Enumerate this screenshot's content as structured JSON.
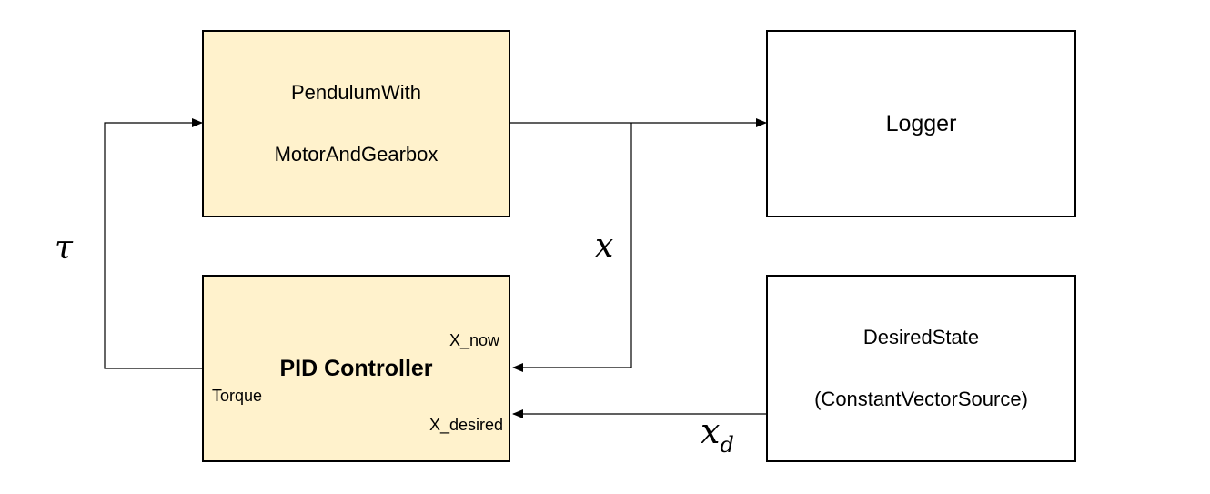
{
  "blocks": {
    "pendulum": {
      "line1": "PendulumWith",
      "line2": "MotorAndGearbox"
    },
    "logger": {
      "label": "Logger"
    },
    "pid": {
      "label": "PID Controller",
      "ports": {
        "x_now": "X_now",
        "x_desired": "X_desired",
        "torque": "Torque"
      }
    },
    "desired_state": {
      "line1": "DesiredState",
      "line2": "(ConstantVectorSource)"
    }
  },
  "signals": {
    "tau": "τ",
    "x": "x",
    "x_d": {
      "base": "x",
      "subscript": "d"
    }
  },
  "colors": {
    "highlight_fill": "#fff2cc",
    "line": "#000000",
    "background": "#ffffff"
  }
}
